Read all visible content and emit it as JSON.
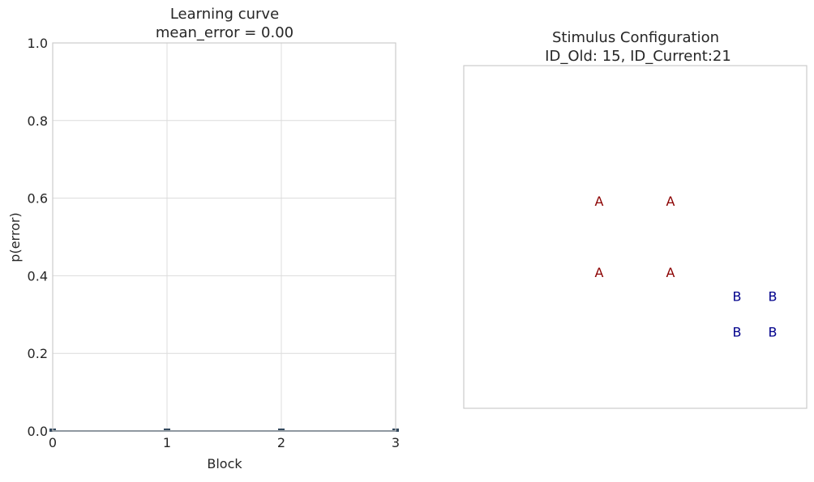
{
  "chart_data": [
    {
      "type": "line",
      "title": "Learning curve",
      "subtitle": "mean_error = 0.00",
      "xlabel": "Block",
      "ylabel": "p(error)",
      "xlim": [
        0,
        3
      ],
      "ylim": [
        0,
        1
      ],
      "x_ticks": [
        "0",
        "1",
        "2",
        "3"
      ],
      "y_ticks": [
        "0.0",
        "0.2",
        "0.4",
        "0.6",
        "0.8",
        "1.0"
      ],
      "x": [
        0,
        1,
        2,
        3
      ],
      "values": [
        0,
        0,
        0,
        0
      ],
      "grid": true,
      "series_color": "#34495e"
    },
    {
      "type": "scatter",
      "title": "Stimulus Configuration",
      "subtitle": "ID_Old: 15, ID_Current:21",
      "grid": false,
      "points": [
        {
          "label": "A",
          "x": 0,
          "y": 2
        },
        {
          "label": "A",
          "x": 1,
          "y": 2
        },
        {
          "label": "A",
          "x": 0,
          "y": 1
        },
        {
          "label": "A",
          "x": 1,
          "y": 1
        },
        {
          "label": "B",
          "x": 2,
          "y": 0.333
        },
        {
          "label": "B",
          "x": 2.5,
          "y": 0.333
        },
        {
          "label": "B",
          "x": 2,
          "y": -0.167
        },
        {
          "label": "B",
          "x": 2.5,
          "y": -0.167
        }
      ],
      "colors": {
        "A": "#8b0000",
        "B": "#00008b"
      }
    }
  ]
}
